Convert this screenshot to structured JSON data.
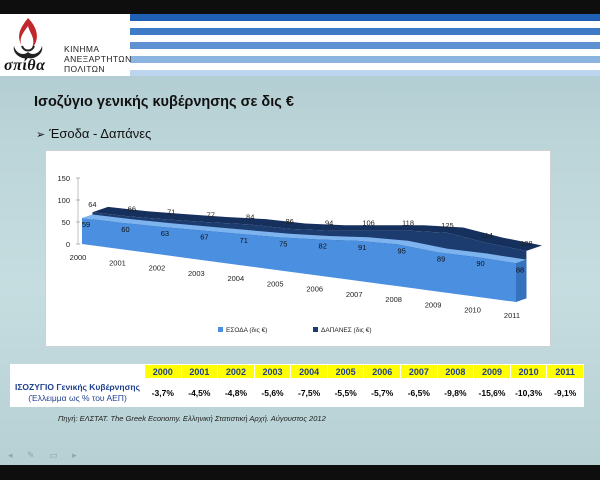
{
  "header": {
    "logo_word": "σπίθα",
    "logo_sub": [
      "ΚΙΝΗΜΑ",
      "ΑΝΕΞΑΡΤΗΤΩΝ",
      "ΠΟΛΙΤΩΝ"
    ]
  },
  "slide": {
    "title": "Ισοζύγιο γενικής κυβέρνησης σε δις €",
    "bullet": "Έσοδα - Δαπάνες",
    "source": "Πηγή: ΕΛΣΤΑΤ. The Greek Economy. Ελληνική Στατιστική Αρχή. Αύγουστος 2012"
  },
  "chart_data": {
    "type": "area",
    "title": "",
    "categories": [
      "2000",
      "2001",
      "2002",
      "2003",
      "2004",
      "2005",
      "2006",
      "2007",
      "2008",
      "2009",
      "2010",
      "2011"
    ],
    "series": [
      {
        "name": "ΕΣΟΔΑ (δις €)",
        "values": [
          59,
          60,
          63,
          67,
          71,
          75,
          82,
          91,
          95,
          89,
          90,
          88
        ],
        "color": "#4a8fe0"
      },
      {
        "name": "ΔΑΠΑΝΕΣ (δις €)",
        "values": [
          64,
          66,
          71,
          77,
          84,
          86,
          94,
          106,
          118,
          125,
          114,
          108
        ],
        "color": "#1c3b6e"
      }
    ],
    "y_ticks": [
      "150",
      "100",
      "50",
      "0"
    ],
    "ylim": [
      0,
      150
    ],
    "legend_position": "bottom"
  },
  "table": {
    "years": [
      "2000",
      "2001",
      "2002",
      "2003",
      "2004",
      "2005",
      "2006",
      "2007",
      "2008",
      "2009",
      "2010",
      "2011"
    ],
    "row_label_bold": "ΙΣΟΖΥΓΙΟ Γενικής Κυβέρνησης",
    "row_label_sub": "(Έλλειμμα ως % του ΑΕΠ)",
    "values": [
      "-3,7%",
      "-4,5%",
      "-4,8%",
      "-5,6%",
      "-7,5%",
      "-5,5%",
      "-5,7%",
      "-6,5%",
      "-9,8%",
      "-15,6%",
      "-10,3%",
      "-9,1%"
    ]
  },
  "colors": {
    "flag_blue": "#1f5fb4",
    "header_yellow": "#ffff00",
    "table_text_blue": "#1f3f8f"
  }
}
